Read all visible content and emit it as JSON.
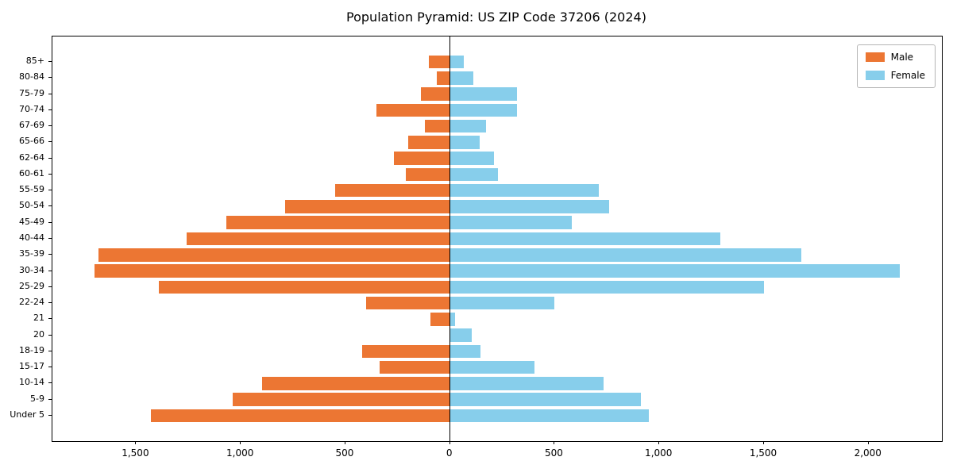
{
  "title": "Population Pyramid: US ZIP Code 37206 (2024)",
  "colors": {
    "male": "#ec7633",
    "female": "#87ceeb",
    "axis": "#000000"
  },
  "chart_data": {
    "type": "bar",
    "orientation": "horizontal-pyramid",
    "title": "Population Pyramid: US ZIP Code 37206 (2024)",
    "categories_bottom_to_top": [
      "Under 5",
      "5-9",
      "10-14",
      "15-17",
      "18-19",
      "20",
      "21",
      "22-24",
      "25-29",
      "30-34",
      "35-39",
      "40-44",
      "45-49",
      "50-54",
      "55-59",
      "60-61",
      "62-64",
      "65-66",
      "67-69",
      "70-74",
      "75-79",
      "80-84",
      "85+"
    ],
    "series": [
      {
        "name": "Male",
        "direction": "left",
        "color": "#ec7633",
        "values": [
          1430,
          1040,
          900,
          335,
          420,
          0,
          95,
          400,
          1390,
          1700,
          1680,
          1260,
          1070,
          790,
          550,
          210,
          270,
          200,
          120,
          350,
          140,
          65,
          100
        ]
      },
      {
        "name": "Female",
        "direction": "right",
        "color": "#87ceeb",
        "values": [
          950,
          910,
          735,
          405,
          145,
          105,
          25,
          500,
          1500,
          2150,
          1680,
          1290,
          580,
          760,
          710,
          230,
          210,
          140,
          170,
          320,
          320,
          110,
          65
        ]
      }
    ],
    "xlim": [
      -1900,
      2350
    ],
    "x_ticks": [
      {
        "value": -1500,
        "label": "1,500"
      },
      {
        "value": -1000,
        "label": "1,000"
      },
      {
        "value": -500,
        "label": "500"
      },
      {
        "value": 0,
        "label": "0"
      },
      {
        "value": 500,
        "label": "500"
      },
      {
        "value": 1000,
        "label": "1,000"
      },
      {
        "value": 1500,
        "label": "1,500"
      },
      {
        "value": 2000,
        "label": "2,000"
      }
    ],
    "legend_position": "upper right",
    "grid": false
  }
}
